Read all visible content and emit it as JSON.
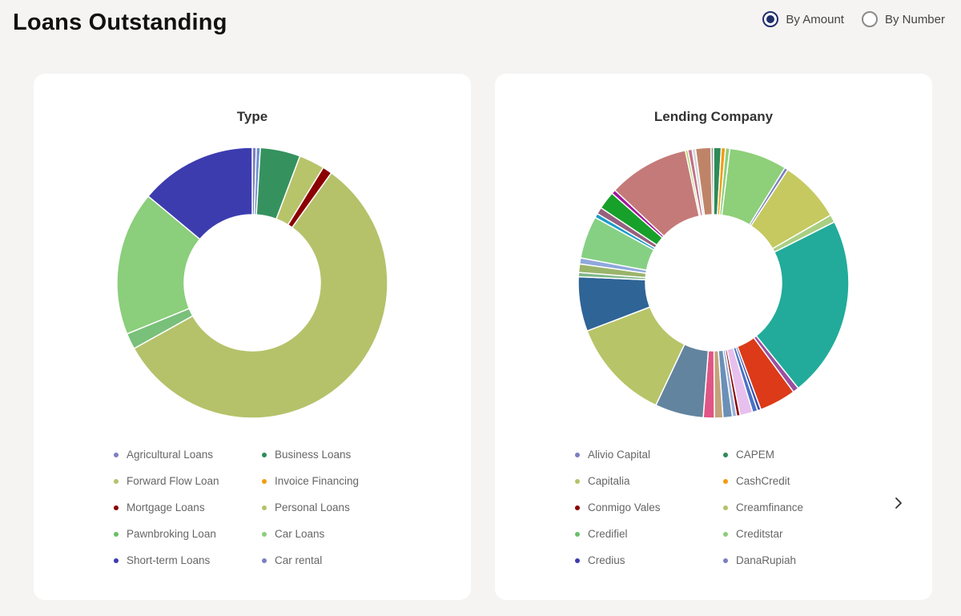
{
  "page": {
    "title": "Loans Outstanding"
  },
  "toggle": {
    "options": [
      {
        "label": "By Amount",
        "checked": true
      },
      {
        "label": "By Number",
        "checked": false
      }
    ]
  },
  "chart_data": [
    {
      "type": "pie",
      "title": "Type",
      "legend": [
        {
          "label": "Agricultural Loans",
          "color": "#7b7fc0"
        },
        {
          "label": "Business Loans",
          "color": "#2e8b57"
        },
        {
          "label": "Forward Flow Loan",
          "color": "#b5c26a"
        },
        {
          "label": "Invoice Financing",
          "color": "#f39c12"
        },
        {
          "label": "Mortgage Loans",
          "color": "#8b0000"
        },
        {
          "label": "Personal Loans",
          "color": "#b5c26a"
        },
        {
          "label": "Pawnbroking Loan",
          "color": "#6abf69"
        },
        {
          "label": "Car Loans",
          "color": "#8bce7b"
        },
        {
          "label": "Short-term Loans",
          "color": "#3c3caf"
        },
        {
          "label": "Car rental",
          "color": "#7b7fc0"
        }
      ],
      "slices": [
        {
          "value": 0.5,
          "color": "#7b7fc0"
        },
        {
          "value": 0.5,
          "color": "#6f8fd0"
        },
        {
          "value": 5.0,
          "color": "#35925e"
        },
        {
          "value": 3.2,
          "color": "#b8c46a"
        },
        {
          "value": 1.2,
          "color": "#8b0000"
        },
        {
          "value": 59.6,
          "color": "#b5c26a"
        },
        {
          "value": 2.0,
          "color": "#79c07a"
        },
        {
          "value": 18.0,
          "color": "#8bce7b"
        },
        {
          "value": 14.6,
          "color": "#3c3caf"
        }
      ]
    },
    {
      "type": "pie",
      "title": "Lending Company",
      "legend": [
        {
          "label": "Alivio Capital",
          "color": "#7b7fc0"
        },
        {
          "label": "CAPEM",
          "color": "#2e8b57"
        },
        {
          "label": "Capitalia",
          "color": "#b5c26a"
        },
        {
          "label": "CashCredit",
          "color": "#f39c12"
        },
        {
          "label": "Conmigo Vales",
          "color": "#8b0000"
        },
        {
          "label": "Creamfinance",
          "color": "#b5c26a"
        },
        {
          "label": "Credifiel",
          "color": "#6abf69"
        },
        {
          "label": "Creditstar",
          "color": "#8bce7b"
        },
        {
          "label": "Credius",
          "color": "#3c3caf"
        },
        {
          "label": "DanaRupiah",
          "color": "#7b7fc0"
        }
      ],
      "slices": [
        {
          "value": 0.9,
          "color": "#2e8b57"
        },
        {
          "value": 0.5,
          "color": "#f39c12"
        },
        {
          "value": 0.5,
          "color": "#8bce7b"
        },
        {
          "value": 6.8,
          "color": "#8ecf79"
        },
        {
          "value": 0.4,
          "color": "#7b7fc0"
        },
        {
          "value": 7.3,
          "color": "#c5c960"
        },
        {
          "value": 0.9,
          "color": "#a8cf82"
        },
        {
          "value": 21.3,
          "color": "#22ab9a"
        },
        {
          "value": 0.7,
          "color": "#9a4fa0"
        },
        {
          "value": 4.3,
          "color": "#dc3a18"
        },
        {
          "value": 0.4,
          "color": "#3a4fb0"
        },
        {
          "value": 0.6,
          "color": "#4a72c4"
        },
        {
          "value": 1.5,
          "color": "#e8c0ee"
        },
        {
          "value": 0.4,
          "color": "#8b0000"
        },
        {
          "value": 0.5,
          "color": "#9fb0d8"
        },
        {
          "value": 1.1,
          "color": "#6a90b8"
        },
        {
          "value": 1.0,
          "color": "#c4a37a"
        },
        {
          "value": 1.3,
          "color": "#e05585"
        },
        {
          "value": 5.7,
          "color": "#62849e"
        },
        {
          "value": 12.0,
          "color": "#b8c468"
        },
        {
          "value": 6.4,
          "color": "#2f6496"
        },
        {
          "value": 0.5,
          "color": "#7fb78a"
        },
        {
          "value": 1.0,
          "color": "#9ab46a"
        },
        {
          "value": 0.7,
          "color": "#8fa8dc"
        },
        {
          "value": 5.0,
          "color": "#86d084"
        },
        {
          "value": 0.5,
          "color": "#1d9ccc"
        },
        {
          "value": 0.8,
          "color": "#96607e"
        },
        {
          "value": 2.1,
          "color": "#17a02a"
        },
        {
          "value": 0.5,
          "color": "#a2179b"
        },
        {
          "value": 9.5,
          "color": "#c47a78"
        },
        {
          "value": 0.3,
          "color": "#b5d466"
        },
        {
          "value": 0.5,
          "color": "#c2708c"
        },
        {
          "value": 0.4,
          "color": "#d4d4d4"
        },
        {
          "value": 1.8,
          "color": "#bf8468"
        },
        {
          "value": 0.3,
          "color": "#9a9a9a"
        }
      ]
    }
  ]
}
